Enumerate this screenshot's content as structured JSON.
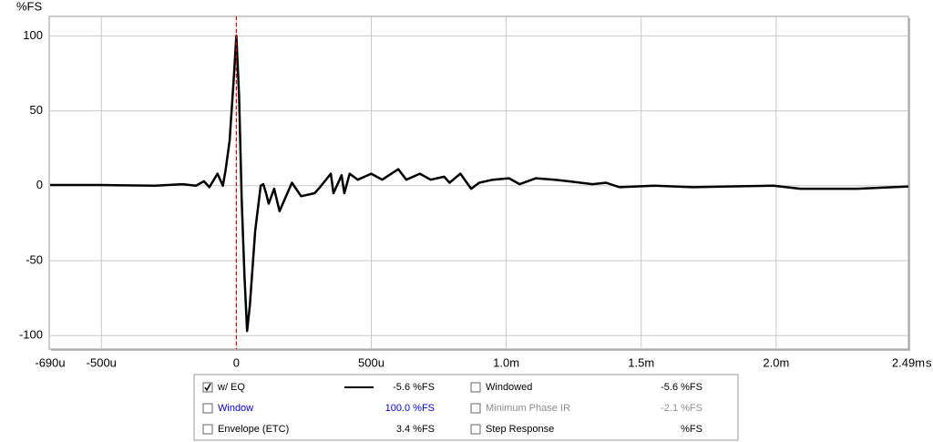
{
  "chart_data": {
    "type": "line",
    "y_label": "%FS",
    "x_label": "s",
    "x": [
      -0.69,
      -0.5,
      -0.3,
      -0.2,
      -0.15,
      -0.12,
      -0.1,
      -0.07,
      -0.05,
      -0.04,
      -0.025,
      -0.01,
      0,
      0.01,
      0.02,
      0.03,
      0.04,
      0.05,
      0.07,
      0.09,
      0.1,
      0.11,
      0.12,
      0.14,
      0.16,
      0.206,
      0.24,
      0.29,
      0.31,
      0.35,
      0.36,
      0.39,
      0.4,
      0.42,
      0.45,
      0.5,
      0.54,
      0.6,
      0.63,
      0.68,
      0.72,
      0.77,
      0.79,
      0.83,
      0.87,
      0.9,
      0.95,
      1.01,
      1.05,
      1.11,
      1.18,
      1.23,
      1.32,
      1.37,
      1.42,
      1.55,
      1.69,
      1.82,
      1.99,
      2.09,
      2.3,
      2.49
    ],
    "series": [
      {
        "name": "w/ EQ",
        "color": "#000000",
        "values": [
          0.5,
          0.5,
          0,
          1,
          0,
          3,
          -1,
          8,
          0,
          10,
          30,
          70,
          100,
          60,
          -10,
          -60,
          -97,
          -80,
          -30,
          0,
          1,
          -5,
          -12,
          -2,
          -17,
          2,
          -7,
          -5,
          -1,
          8,
          -5,
          7,
          -5,
          8,
          4,
          8,
          4,
          11,
          4,
          8,
          4,
          6,
          2,
          8,
          -2,
          2,
          4,
          5,
          1,
          5,
          4,
          3,
          1,
          2,
          -1,
          0,
          -1,
          -0.5,
          0,
          -2,
          -2,
          -0.5
        ]
      }
    ],
    "xlim": [
      -0.69,
      2.49
    ],
    "xticks": [
      {
        "value": -0.69,
        "label": "-690u"
      },
      {
        "value": -0.5,
        "label": "-500u"
      },
      0,
      {
        "value": 0.5,
        "label": "500u"
      },
      {
        "value": 1.0,
        "label": "1.0m"
      },
      {
        "value": 1.5,
        "label": "1.5m"
      },
      {
        "value": 2.0,
        "label": "2.0m"
      },
      {
        "value": 2.49,
        "label": "2.49m"
      }
    ],
    "ylim": [
      -109,
      113
    ],
    "yticks": [
      100,
      50,
      0,
      -50,
      -100
    ],
    "grid": true,
    "cursor_x": 0,
    "cursor_color": "#d40000"
  },
  "legend_panel": {
    "items": [
      {
        "label": "w/ EQ",
        "checked": true,
        "value_text": "-5.6 %FS",
        "color": "#000000",
        "line_color": "#000000"
      },
      {
        "label": "Windowed",
        "checked": false,
        "value_text": "-5.6 %FS",
        "color": "#000000"
      },
      {
        "label": "Window",
        "checked": false,
        "value_text": "100.0 %FS",
        "color": "#0000cc"
      },
      {
        "label": "Minimum Phase IR",
        "checked": false,
        "value_text": "-2.1 %FS",
        "color": "#8c8c8c"
      },
      {
        "label": "Envelope (ETC)",
        "checked": false,
        "value_text": "3.4 %FS",
        "color": "#000000"
      },
      {
        "label": "Step Response",
        "checked": false,
        "value_text": "%FS",
        "color": "#000000"
      }
    ]
  }
}
